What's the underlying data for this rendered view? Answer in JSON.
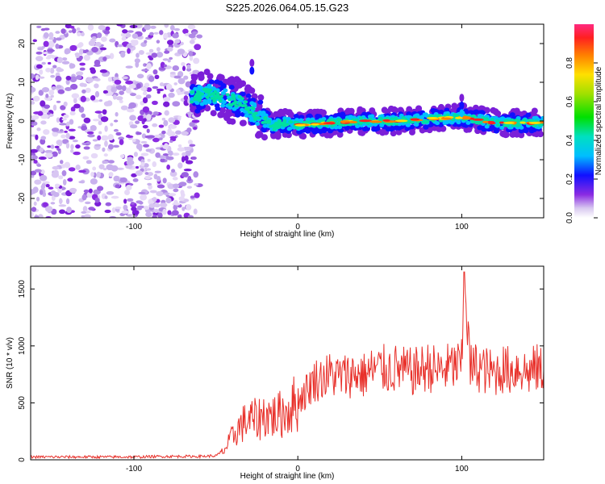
{
  "title": "S225.2026.064.05.15.G23",
  "chart_data": [
    {
      "type": "heatmap",
      "name": "spectrogram",
      "xlabel": "Height of straight line (km)",
      "ylabel": "Frequency (Hz)",
      "xlim": [
        -163,
        150
      ],
      "ylim": [
        -25,
        25
      ],
      "xticks": [
        -100,
        0,
        100
      ],
      "yticks": [
        20,
        10,
        0,
        -10,
        -20
      ],
      "noise_region_x": [
        -163,
        -60
      ],
      "signal_ridge": [
        {
          "x": -65,
          "f": 6
        },
        {
          "x": -55,
          "f": 7
        },
        {
          "x": -45,
          "f": 6
        },
        {
          "x": -35,
          "f": 5
        },
        {
          "x": -30,
          "f": 3
        },
        {
          "x": -25,
          "f": 1.5
        },
        {
          "x": -20,
          "f": 0.5
        },
        {
          "x": -15,
          "f": -1.5
        },
        {
          "x": -10,
          "f": -0.5
        },
        {
          "x": 0,
          "f": -1
        },
        {
          "x": 20,
          "f": -0.5
        },
        {
          "x": 40,
          "f": 0
        },
        {
          "x": 60,
          "f": 0
        },
        {
          "x": 80,
          "f": 0.5
        },
        {
          "x": 100,
          "f": 1
        },
        {
          "x": 120,
          "f": -0.5
        },
        {
          "x": 150,
          "f": -0.5
        }
      ],
      "colorbar": {
        "label": "Normalized spectral amplitude",
        "ticks": [
          "0.0",
          "0.2",
          "0.4",
          "0.6",
          "0.8"
        ],
        "min": 0,
        "max": 1
      }
    },
    {
      "type": "line",
      "name": "snr",
      "xlabel": "Height of straight line (km)",
      "ylabel": "SNR (10 * v/v)",
      "xlim": [
        -163,
        150
      ],
      "ylim": [
        0,
        1700
      ],
      "xticks": [
        -100,
        0,
        100
      ],
      "yticks": [
        0,
        500,
        1000,
        1500
      ],
      "color": "#e8302a",
      "x": [
        -163,
        -140,
        -120,
        -100,
        -80,
        -60,
        -50,
        -45,
        -40,
        -35,
        -30,
        -25,
        -20,
        -15,
        -10,
        -5,
        0,
        5,
        10,
        15,
        20,
        25,
        30,
        35,
        40,
        45,
        50,
        55,
        60,
        65,
        70,
        75,
        80,
        85,
        90,
        95,
        100,
        102,
        105,
        110,
        115,
        120,
        125,
        130,
        135,
        140,
        145,
        150
      ],
      "y": [
        25,
        25,
        25,
        25,
        30,
        30,
        35,
        80,
        200,
        300,
        350,
        350,
        400,
        380,
        400,
        450,
        520,
        600,
        700,
        720,
        750,
        730,
        740,
        760,
        740,
        780,
        800,
        790,
        800,
        780,
        770,
        790,
        820,
        780,
        800,
        820,
        830,
        1650,
        800,
        820,
        780,
        760,
        800,
        780,
        820,
        760,
        800,
        790
      ]
    }
  ]
}
